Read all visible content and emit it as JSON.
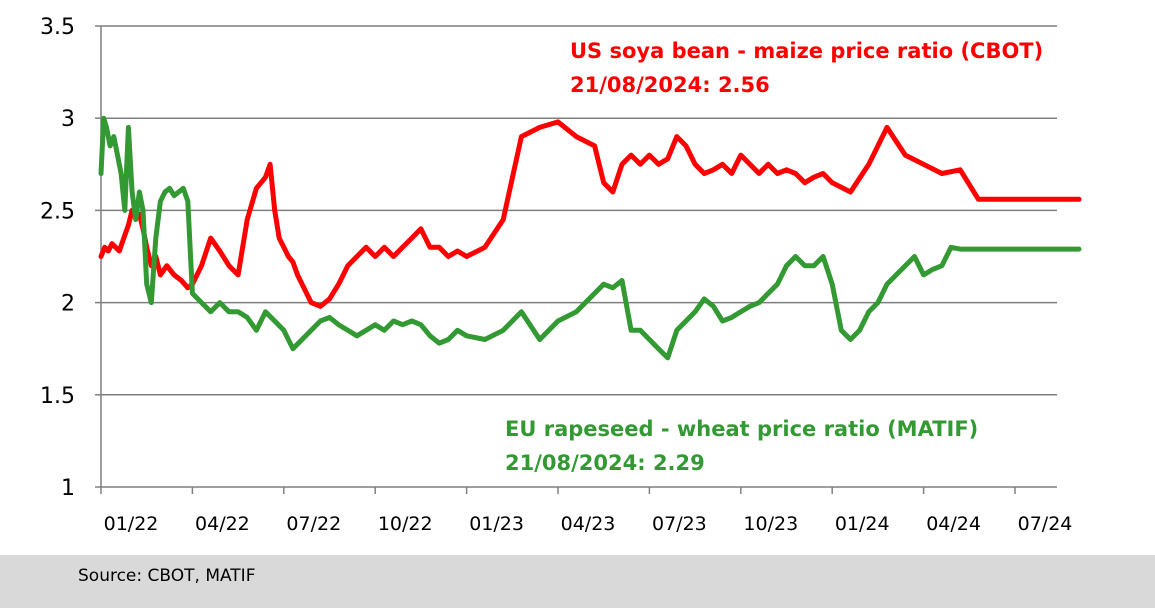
{
  "chart_data": {
    "type": "line",
    "x_tick_labels": [
      "01/22",
      "04/22",
      "07/22",
      "10/22",
      "01/23",
      "04/23",
      "07/23",
      "10/23",
      "01/24",
      "04/24",
      "07/24"
    ],
    "y_tick_labels": [
      "1",
      "1.5",
      "2",
      "2.5",
      "3",
      "3.5"
    ],
    "ylim": [
      1,
      3.5
    ],
    "grid": true,
    "colors": {
      "us": "#ff0000",
      "eu": "#339933"
    },
    "annotations": {
      "us_title": "US soya bean - maize price ratio (CBOT)",
      "us_value": "21/08/2024:  2.56",
      "eu_title": "EU rapeseed - wheat price ratio (MATIF)",
      "eu_value": "21/08/2024:  2.29"
    },
    "series": [
      {
        "key": "us",
        "x": [
          0,
          0.04,
          0.08,
          0.12,
          0.16,
          0.2,
          0.25,
          0.3,
          0.34,
          0.38,
          0.42,
          0.46,
          0.5,
          0.55,
          0.6,
          0.65,
          0.72,
          0.8,
          0.88,
          0.95,
          1.0,
          1.1,
          1.2,
          1.3,
          1.4,
          1.5,
          1.6,
          1.7,
          1.8,
          1.85,
          1.9,
          1.95,
          2.0,
          2.05,
          2.1,
          2.15,
          2.2,
          2.3,
          2.4,
          2.5,
          2.6,
          2.7,
          2.8,
          2.9,
          3.0,
          3.1,
          3.2,
          3.3,
          3.4,
          3.5,
          3.6,
          3.7,
          3.8,
          3.9,
          4.0,
          4.2,
          4.4,
          4.6,
          4.8,
          5.0,
          5.2,
          5.4,
          5.5,
          5.6,
          5.7,
          5.8,
          5.9,
          6.0,
          6.1,
          6.2,
          6.3,
          6.4,
          6.5,
          6.6,
          6.7,
          6.8,
          6.9,
          7.0,
          7.1,
          7.2,
          7.3,
          7.4,
          7.5,
          7.6,
          7.7,
          7.8,
          7.9,
          8.0,
          8.2,
          8.4,
          8.6,
          8.8,
          9.0,
          9.2,
          9.4,
          9.6,
          9.7,
          9.8,
          9.9,
          10.0,
          10.1,
          10.2,
          10.3,
          10.4,
          10.5,
          10.6,
          10.65,
          10.7
        ],
        "y": [
          2.25,
          2.3,
          2.28,
          2.32,
          2.3,
          2.28,
          2.35,
          2.42,
          2.5,
          2.46,
          2.48,
          2.4,
          2.3,
          2.2,
          2.25,
          2.15,
          2.2,
          2.15,
          2.12,
          2.08,
          2.1,
          2.2,
          2.35,
          2.28,
          2.2,
          2.15,
          2.45,
          2.62,
          2.68,
          2.75,
          2.5,
          2.35,
          2.3,
          2.25,
          2.22,
          2.15,
          2.1,
          2.0,
          1.98,
          2.02,
          2.1,
          2.2,
          2.25,
          2.3,
          2.25,
          2.3,
          2.25,
          2.3,
          2.35,
          2.4,
          2.3,
          2.3,
          2.25,
          2.28,
          2.25,
          2.3,
          2.45,
          2.9,
          2.95,
          2.98,
          2.9,
          2.85,
          2.65,
          2.6,
          2.75,
          2.8,
          2.75,
          2.8,
          2.75,
          2.78,
          2.9,
          2.85,
          2.75,
          2.7,
          2.72,
          2.75,
          2.7,
          2.8,
          2.75,
          2.7,
          2.75,
          2.7,
          2.72,
          2.7,
          2.65,
          2.68,
          2.7,
          2.65,
          2.6,
          2.75,
          2.95,
          2.8,
          2.75,
          2.7,
          2.72,
          2.56,
          2.56,
          2.56,
          2.56,
          2.56,
          2.56,
          2.56,
          2.56,
          2.56,
          2.56,
          2.56,
          2.56,
          2.56
        ]
      },
      {
        "key": "eu",
        "x": [
          0,
          0.03,
          0.06,
          0.1,
          0.14,
          0.18,
          0.22,
          0.26,
          0.3,
          0.34,
          0.38,
          0.42,
          0.46,
          0.5,
          0.55,
          0.6,
          0.65,
          0.7,
          0.75,
          0.8,
          0.85,
          0.9,
          0.95,
          1.0,
          1.1,
          1.2,
          1.3,
          1.4,
          1.5,
          1.6,
          1.7,
          1.8,
          1.9,
          2.0,
          2.1,
          2.2,
          2.3,
          2.4,
          2.5,
          2.6,
          2.7,
          2.8,
          2.9,
          3.0,
          3.1,
          3.2,
          3.3,
          3.4,
          3.5,
          3.6,
          3.7,
          3.8,
          3.9,
          4.0,
          4.2,
          4.4,
          4.6,
          4.8,
          5.0,
          5.2,
          5.4,
          5.5,
          5.6,
          5.7,
          5.8,
          5.9,
          6.0,
          6.1,
          6.2,
          6.3,
          6.4,
          6.5,
          6.6,
          6.7,
          6.8,
          6.9,
          7.0,
          7.1,
          7.2,
          7.3,
          7.4,
          7.5,
          7.6,
          7.7,
          7.8,
          7.9,
          8.0,
          8.1,
          8.2,
          8.3,
          8.4,
          8.5,
          8.6,
          8.7,
          8.8,
          8.9,
          9.0,
          9.1,
          9.2,
          9.3,
          9.4,
          9.5,
          9.6,
          9.7,
          9.8,
          9.9,
          10.0,
          10.1,
          10.2,
          10.3,
          10.4,
          10.5,
          10.6,
          10.65,
          10.7
        ],
        "y": [
          2.7,
          3.0,
          2.95,
          2.85,
          2.9,
          2.8,
          2.7,
          2.5,
          2.95,
          2.6,
          2.45,
          2.6,
          2.5,
          2.1,
          2.0,
          2.35,
          2.55,
          2.6,
          2.62,
          2.58,
          2.6,
          2.62,
          2.55,
          2.05,
          2.0,
          1.95,
          2.0,
          1.95,
          1.95,
          1.92,
          1.85,
          1.95,
          1.9,
          1.85,
          1.75,
          1.8,
          1.85,
          1.9,
          1.92,
          1.88,
          1.85,
          1.82,
          1.85,
          1.88,
          1.85,
          1.9,
          1.88,
          1.9,
          1.88,
          1.82,
          1.78,
          1.8,
          1.85,
          1.82,
          1.8,
          1.85,
          1.95,
          1.8,
          1.9,
          1.95,
          2.05,
          2.1,
          2.08,
          2.12,
          1.85,
          1.85,
          1.8,
          1.75,
          1.7,
          1.85,
          1.9,
          1.95,
          2.02,
          1.98,
          1.9,
          1.92,
          1.95,
          1.98,
          2.0,
          2.05,
          2.1,
          2.2,
          2.25,
          2.2,
          2.2,
          2.25,
          2.1,
          1.85,
          1.8,
          1.85,
          1.95,
          2.0,
          2.1,
          2.15,
          2.2,
          2.25,
          2.15,
          2.18,
          2.2,
          2.3,
          2.29,
          2.29,
          2.29,
          2.29,
          2.29,
          2.29,
          2.29,
          2.29,
          2.29,
          2.29,
          2.29,
          2.29,
          2.29,
          2.29,
          2.29
        ]
      }
    ]
  },
  "footer": {
    "source": "Source: CBOT, MATIF"
  }
}
